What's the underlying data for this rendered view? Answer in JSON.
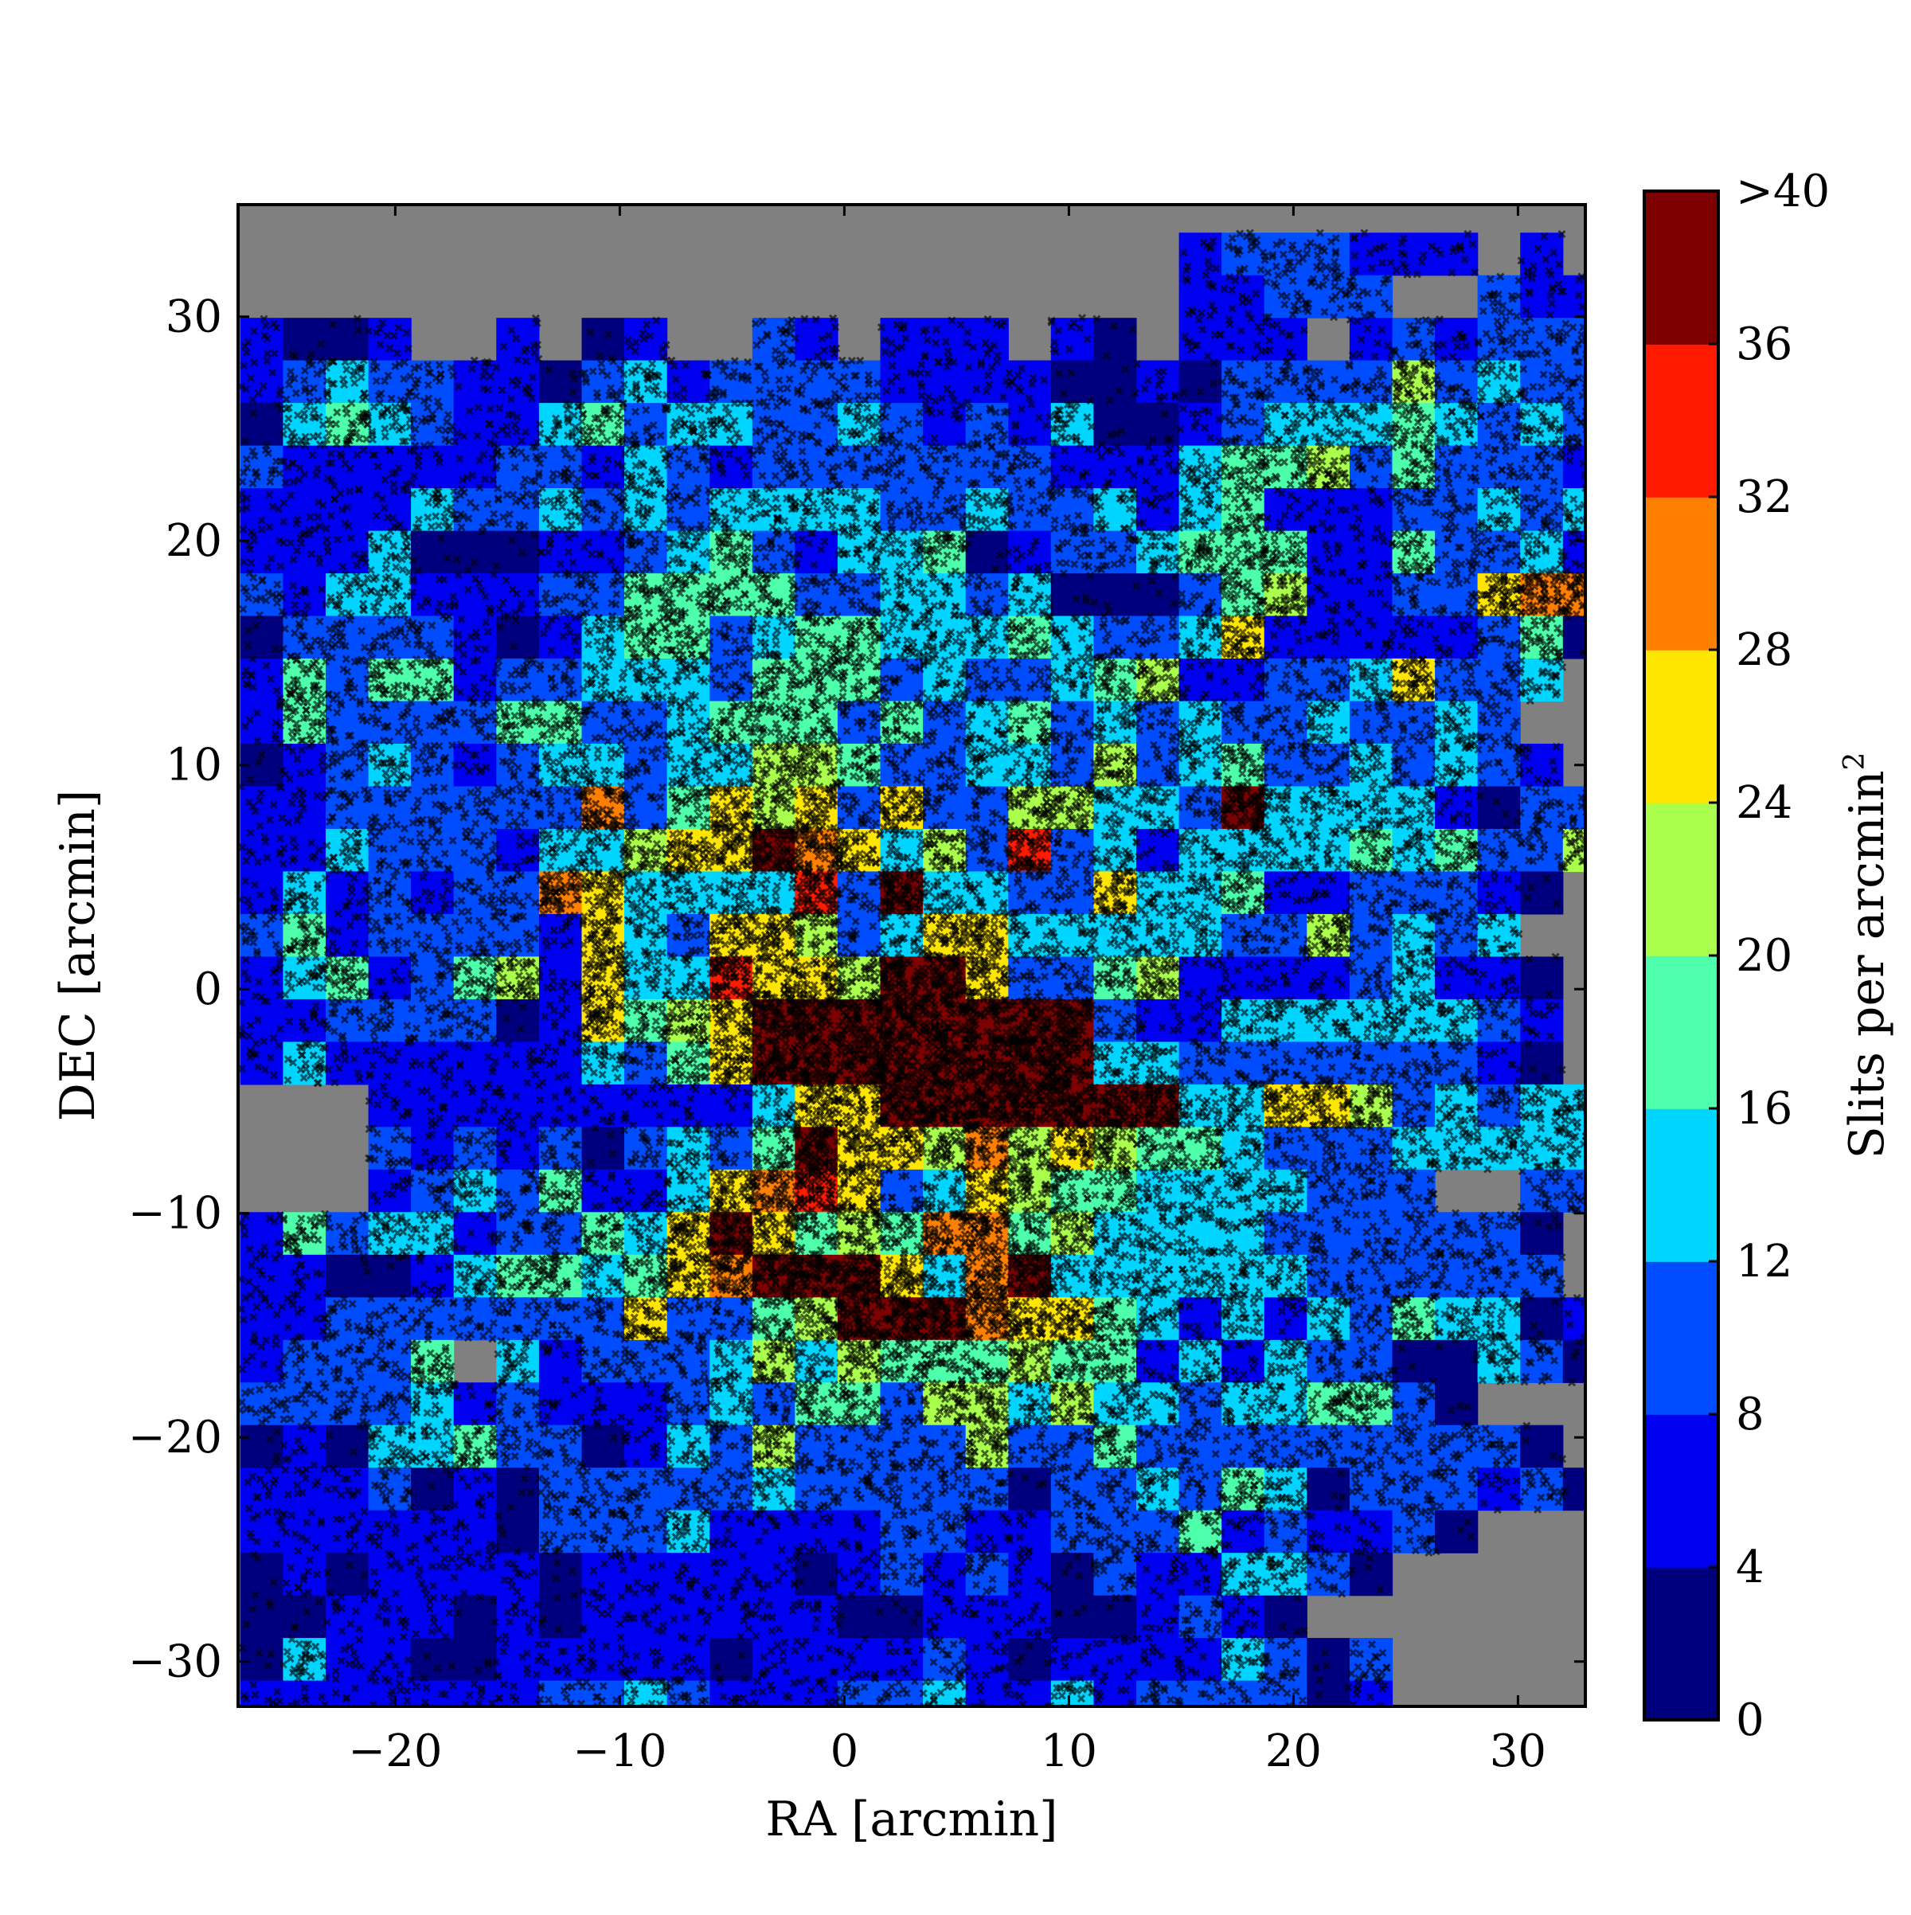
{
  "chart_data": {
    "type": "heatmap",
    "xlabel": "RA [arcmin]",
    "ylabel": "DEC [arcmin]",
    "xlim": [
      -27,
      33
    ],
    "ylim": [
      -32,
      35
    ],
    "x_ticks": [
      -20,
      -10,
      0,
      10,
      20,
      30
    ],
    "x_tick_labels": [
      "−20",
      "−10",
      "0",
      "10",
      "20",
      "30"
    ],
    "y_ticks": [
      -30,
      -20,
      -10,
      0,
      10,
      20,
      30
    ],
    "y_tick_labels": [
      "−30",
      "−20",
      "−10",
      "0",
      "10",
      "20",
      "30"
    ],
    "background_color": "#808080",
    "bin_size_arcmin": 1.9,
    "grid_x0": -26.9,
    "grid_y_top": 33.75,
    "row_labels": [
      "rows top→bottom, columns left→right; each char is a bin class: '.' no data, 0:[0,4) 1:[4,8) 2:[8,12) 3:[12,16) 4:[16,20) 5:[20,24) 6:[24,28) 7:[28,32) 8:[32,36) 9:>36"
    ],
    "grid": [
      "......................1222111.1...",
      "......................11222..2111.",
      "1001..1.01..21.111.10.111.12122221",
      "12322110231222211110010222252322111",
      "03432113423322321213001233343232.01",
      "2111112213212222222111344524222122..",
      "111132232323333223223134111223233.2",
      "1113000112342133401223444114223123.2",
      "2133111224444223323000245112267752122",
      "0222210134423443334322361111124022..",
      "1424412233324442322345112236223....",
      "142222442234442423423232232232.",
      "0123212332335542233252342232321.",
      "1122222272465626225533293333102222",
      "11322213356697635282313333434225220",
      "1312122763333829332263341122210",
      "241222216326652366333332252323",
      "1341245163386659962245111123110",
      "1122220164569999999921133333321",
      "1311111132469999999933222222210",
      "...1111111113669999999336652323311",
      "...21212023249665756544322233333031",
      "...1232411367862365443333222..22..",
      "1423312243696454774533332222220",
      "1100134434679996379333333222222",
      "11222222262245999766431313243301",
      "12224.31222353544454413132200320",
      "22223121112324425535332334420",
      "0103342201325222252242222222220",
      "11120102222232222202232430222120",
      "11111102223111122112224121120",
      "010111101111101212102113320",
      "0011101011111100111001210",
      "031100111110111121011113202",
      "111111122321112231131222201",
      "011123222322232222022321",
      "11....1....1......."
    ],
    "points_note": "",
    "colorbar": {
      "label": "Slits per arcmin²",
      "label_main": "Slits per arcmin",
      "label_sup": "2",
      "ticks": [
        "0",
        "4",
        "8",
        "12",
        "16",
        "20",
        "24",
        "28",
        "32",
        "36",
        ">40"
      ],
      "colors": [
        "#00007f",
        "#0000f1",
        "#004cff",
        "#00d5ff",
        "#4dffaa",
        "#aaff4d",
        "#ffe600",
        "#ff7f00",
        "#ff1a00",
        "#7f0000"
      ]
    }
  }
}
